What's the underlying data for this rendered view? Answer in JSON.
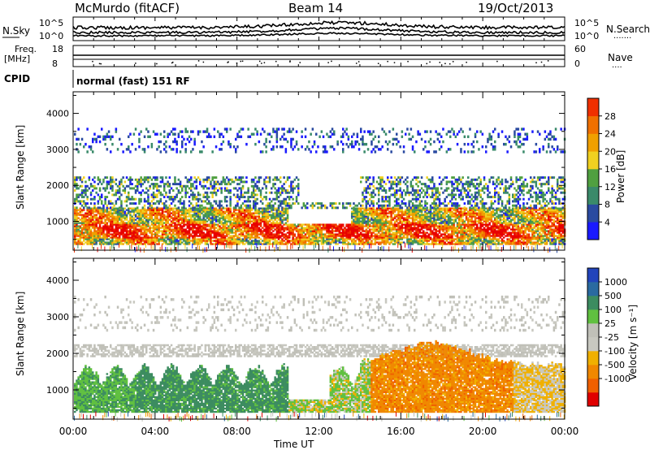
{
  "header": {
    "station": "McMurdo (fitACF)",
    "beam": "Beam 14",
    "date": "19/Oct/2013"
  },
  "top_panels": {
    "nsky_label": "N.Sky",
    "nsearch_label": "N.Search",
    "nsky_ticks": [
      "10^5",
      "10^0"
    ],
    "nsearch_ticks": [
      "10^5",
      "10^0"
    ],
    "freq_label_1": "Freq.",
    "freq_label_2": "[MHz]",
    "freq_ticks": [
      "18",
      "8"
    ],
    "nave_label": "Nave",
    "nave_ticks": [
      "60",
      "0"
    ],
    "cpid_label": "CPID",
    "cpid_text": "normal (fast) 151 RF",
    "dotted_marker": "·······",
    "dotted_marker_short": "····"
  },
  "colors": {
    "power_scale": [
      "#1a1aff",
      "#2a4aa0",
      "#3a8a6a",
      "#50a040",
      "#f0d020",
      "#f0a000",
      "#f07000",
      "#f03000",
      "#e80000"
    ],
    "velocity_scale": [
      "#e00000",
      "#f06000",
      "#f08800",
      "#f0b000",
      "#c8c8c0",
      "#c0c0b8",
      "#60c040",
      "#3c8c60",
      "#2a6aa0",
      "#2244bb"
    ]
  },
  "chart_data": [
    {
      "type": "heatmap",
      "title": "",
      "xlabel": "Time UT",
      "ylabel": "Slant Range [km]",
      "x_ticks": [
        "00:00",
        "04:00",
        "08:00",
        "12:00",
        "16:00",
        "20:00",
        "00:00"
      ],
      "y_ticks": [
        1000,
        2000,
        3000,
        4000
      ],
      "ylim": [
        200,
        4600
      ],
      "xlim_hours": [
        0,
        24
      ],
      "colorbar": {
        "label": "Power [dB]",
        "ticks": [
          "4",
          "8",
          "12",
          "16",
          "20",
          "24",
          "28"
        ],
        "range": [
          0,
          32
        ]
      },
      "bands": [
        {
          "range_km": [
            400,
            1300
          ],
          "level": "high"
        },
        {
          "range_km": [
            1300,
            2200
          ],
          "level": "medium"
        },
        {
          "range_km": [
            3000,
            3500
          ],
          "level": "low"
        }
      ]
    },
    {
      "type": "heatmap",
      "title": "",
      "xlabel": "Time UT",
      "ylabel": "Slant Range [km]",
      "x_ticks": [
        "00:00",
        "04:00",
        "08:00",
        "12:00",
        "16:00",
        "20:00",
        "00:00"
      ],
      "y_ticks": [
        1000,
        2000,
        3000,
        4000
      ],
      "ylim": [
        200,
        4600
      ],
      "xlim_hours": [
        0,
        24
      ],
      "colorbar": {
        "label": "Velocity [m s⁻¹]",
        "ticks": [
          "1000",
          "500",
          "100",
          "25",
          "-25",
          "-100",
          "-500",
          "-1000"
        ]
      },
      "regions": [
        {
          "hours": [
            0,
            14
          ],
          "range_km": [
            400,
            1600
          ],
          "sign": "positive"
        },
        {
          "hours": [
            14,
            22
          ],
          "range_km": [
            400,
            2300
          ],
          "sign": "negative"
        },
        {
          "hours": [
            0,
            24
          ],
          "range_km": [
            1900,
            2200
          ],
          "sign": "near-zero"
        }
      ]
    }
  ]
}
